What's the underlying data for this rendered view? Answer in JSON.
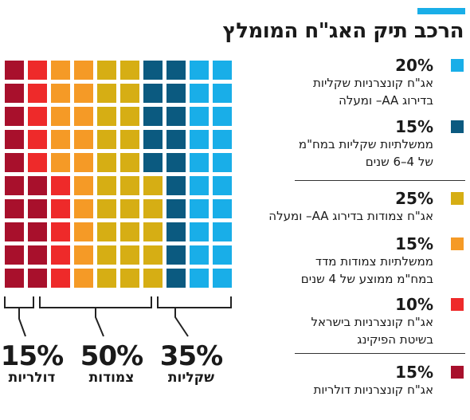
{
  "title": "הרכב תיק האג\"ח המומלץ",
  "chart_data": {
    "type": "waffle",
    "total_cells": 100,
    "segments": [
      {
        "pct": "20%",
        "value": 20,
        "color": "#19aee8",
        "desc": "אג\"ח קונצרניות שקליות\nבדירוג AA– ומעלה"
      },
      {
        "pct": "15%",
        "value": 15,
        "color": "#0b5a80",
        "desc": "ממשלתיות שקליות במח\"מ\nשל 4–6 שנים"
      },
      {
        "pct": "25%",
        "value": 25,
        "color": "#d6ae14",
        "desc": "אג\"ח צמודות בדירוג AA– ומעלה"
      },
      {
        "pct": "15%",
        "value": 15,
        "color": "#f59a26",
        "desc": "ממשלתיות צמודות מדד\nבמח\"מ ממוצע של 4 שנים"
      },
      {
        "pct": "10%",
        "value": 10,
        "color": "#ee2a2a",
        "desc": "אג\"ח קונצרניות בישראל\nבשיטת הפיקינג"
      },
      {
        "pct": "15%",
        "value": 15,
        "color": "#a8102c",
        "desc": "אג\"ח קונצרניות דולריות"
      }
    ],
    "groups": [
      {
        "pct": "35%",
        "value": 35,
        "label": "שקליות"
      },
      {
        "pct": "50%",
        "value": 50,
        "label": "צמודות"
      },
      {
        "pct": "15%",
        "value": 15,
        "label": "דולריות"
      }
    ]
  }
}
